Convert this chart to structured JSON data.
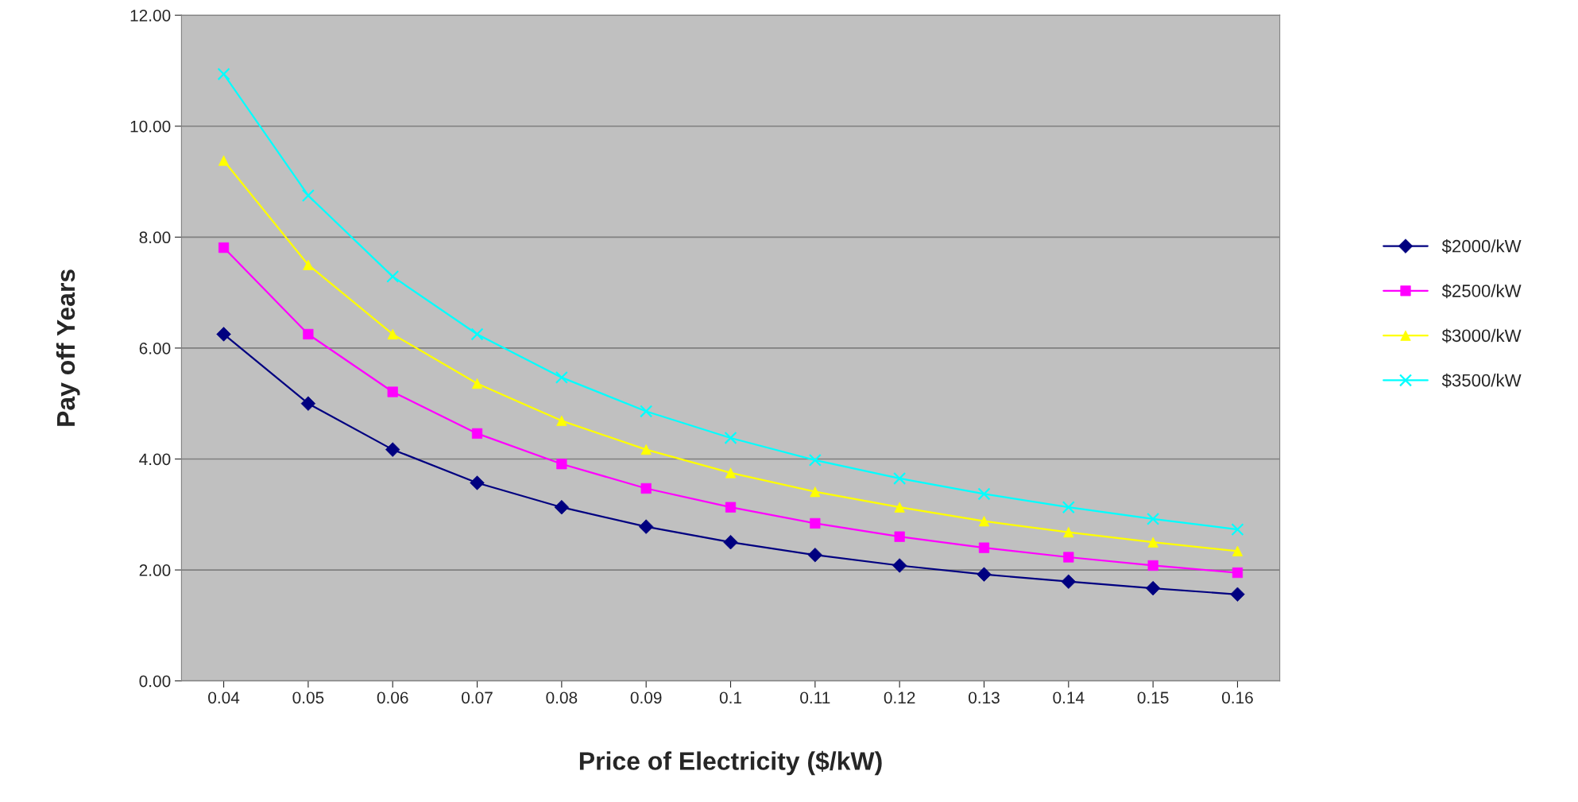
{
  "chart_data": {
    "type": "line",
    "xlabel": "Price of Electricity ($/kW)",
    "ylabel": "Pay off Years",
    "categories": [
      "0.04",
      "0.05",
      "0.06",
      "0.07",
      "0.08",
      "0.09",
      "0.1",
      "0.11",
      "0.12",
      "0.13",
      "0.14",
      "0.15",
      "0.16"
    ],
    "ylim": [
      0,
      12
    ],
    "yticks": [
      {
        "value": 0,
        "label": "0.00"
      },
      {
        "value": 2,
        "label": "2.00"
      },
      {
        "value": 4,
        "label": "4.00"
      },
      {
        "value": 6,
        "label": "6.00"
      },
      {
        "value": 8,
        "label": "8.00"
      },
      {
        "value": 10,
        "label": "10.00"
      },
      {
        "value": 12,
        "label": "12.00"
      }
    ],
    "grid": "y",
    "legend": "right",
    "line_style": "solid",
    "series": [
      {
        "name": "$2000/kW",
        "color": "#000080",
        "marker": "diamond",
        "values": [
          6.25,
          5.0,
          4.17,
          3.57,
          3.13,
          2.78,
          2.5,
          2.27,
          2.08,
          1.92,
          1.79,
          1.67,
          1.56
        ]
      },
      {
        "name": "$2500/kW",
        "color": "#ff00ff",
        "marker": "square",
        "values": [
          7.81,
          6.25,
          5.21,
          4.46,
          3.91,
          3.47,
          3.13,
          2.84,
          2.6,
          2.4,
          2.23,
          2.08,
          1.95
        ]
      },
      {
        "name": "$3000/kW",
        "color": "#ffff00",
        "marker": "triangle",
        "values": [
          9.38,
          7.5,
          6.25,
          5.36,
          4.69,
          4.17,
          3.75,
          3.41,
          3.13,
          2.88,
          2.68,
          2.5,
          2.34
        ]
      },
      {
        "name": "$3500/kW",
        "color": "#00ffff",
        "marker": "cross",
        "values": [
          10.94,
          8.75,
          7.29,
          6.25,
          5.47,
          4.86,
          4.38,
          3.98,
          3.65,
          3.37,
          3.13,
          2.92,
          2.73
        ]
      }
    ]
  }
}
